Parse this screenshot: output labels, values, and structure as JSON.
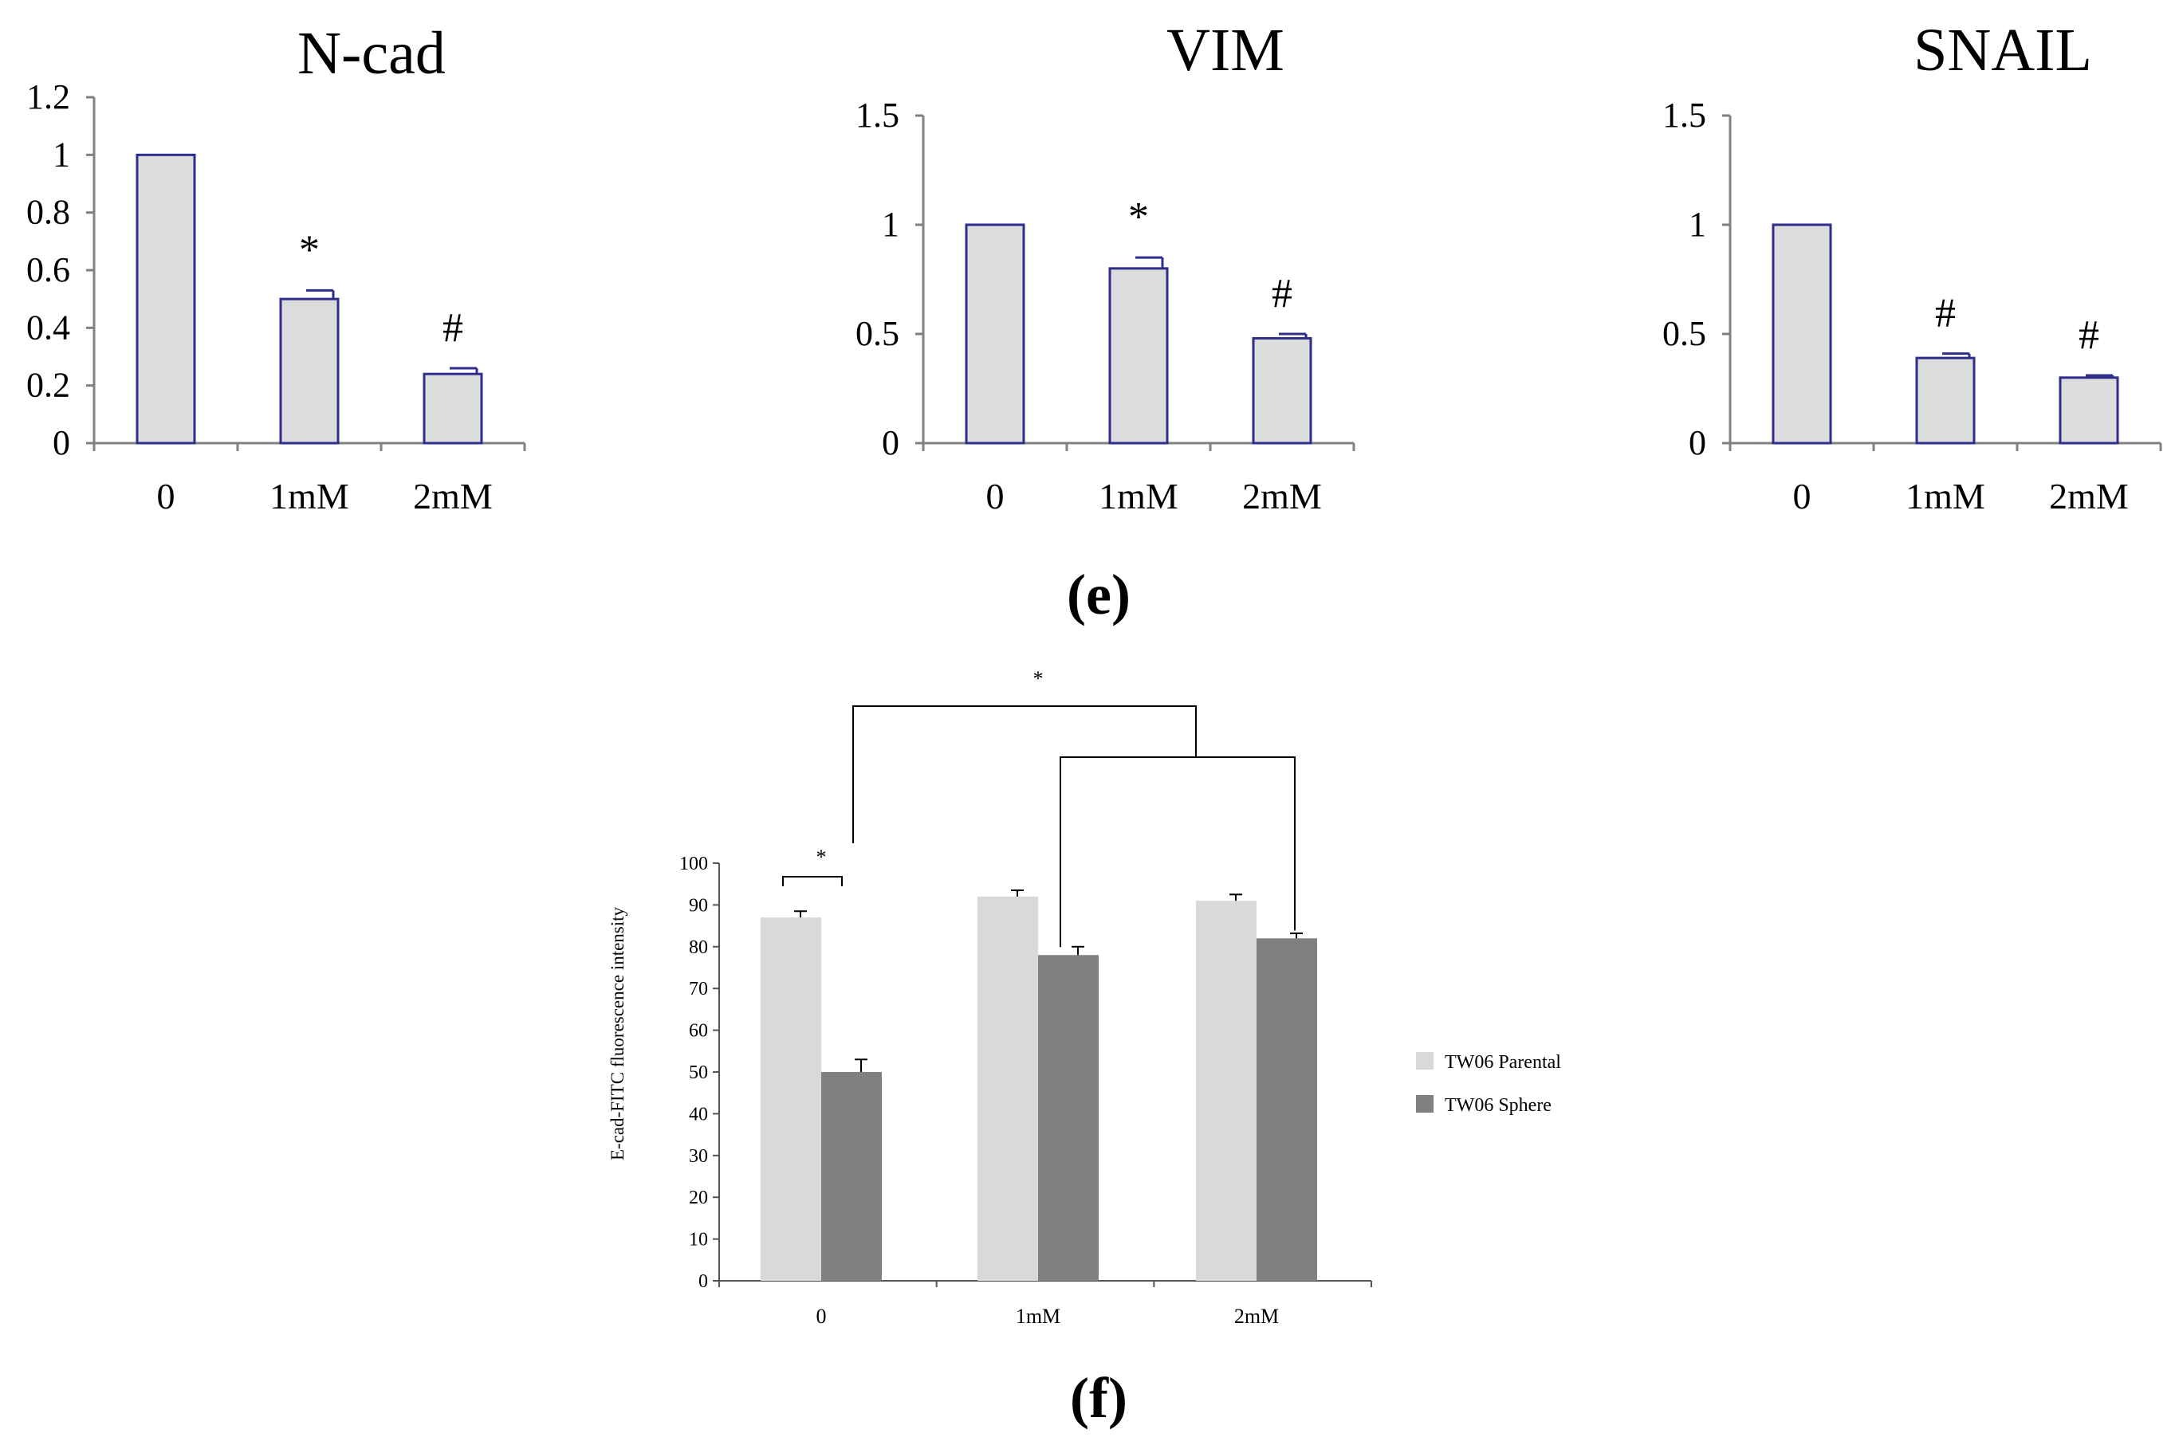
{
  "figure": {
    "panel_e_label": "(e)",
    "panel_f_label": "(f)"
  },
  "colors": {
    "bar_fill_e": "#dcdcdc",
    "bar_stroke_e": "#2e2e8a",
    "axis": "#808080",
    "parental": "#d9d9d9",
    "sphere": "#808080"
  },
  "chart_data": [
    {
      "type": "bar",
      "title": "N-cad",
      "categories": [
        "0",
        "1mM",
        "2mM"
      ],
      "values": [
        1.0,
        0.5,
        0.24
      ],
      "errors": [
        0,
        0.03,
        0.02
      ],
      "markers": [
        "",
        "*",
        "#"
      ],
      "ylim": [
        0,
        1.2
      ],
      "yticks": [
        "0",
        "0.2",
        "0.4",
        "0.6",
        "0.8",
        "1",
        "1.2"
      ],
      "ytick_values": [
        0,
        0.2,
        0.4,
        0.6,
        0.8,
        1.0,
        1.2
      ]
    },
    {
      "type": "bar",
      "title": "VIM",
      "categories": [
        "0",
        "1mM",
        "2mM"
      ],
      "values": [
        1.0,
        0.8,
        0.48
      ],
      "errors": [
        0,
        0.05,
        0.02
      ],
      "markers": [
        "",
        "*",
        "#"
      ],
      "ylim": [
        0,
        1.5
      ],
      "yticks": [
        "0",
        "0.5",
        "1",
        "1.5"
      ],
      "ytick_values": [
        0,
        0.5,
        1.0,
        1.5
      ]
    },
    {
      "type": "bar",
      "title": "SNAIL",
      "categories": [
        "0",
        "1mM",
        "2mM"
      ],
      "values": [
        1.0,
        0.39,
        0.3
      ],
      "errors": [
        0,
        0.02,
        0.01
      ],
      "markers": [
        "",
        "#",
        "#"
      ],
      "ylim": [
        0,
        1.5
      ],
      "yticks": [
        "0",
        "0.5",
        "1",
        "1.5"
      ],
      "ytick_values": [
        0,
        0.5,
        1.0,
        1.5
      ]
    },
    {
      "type": "bar",
      "ylabel": "E-cad-FITC fluorescence intensity",
      "categories": [
        "0",
        "1mM",
        "2mM"
      ],
      "ylim": [
        0,
        100
      ],
      "yticks": [
        "0",
        "10",
        "20",
        "30",
        "40",
        "50",
        "60",
        "70",
        "80",
        "90",
        "100"
      ],
      "ytick_values": [
        0,
        10,
        20,
        30,
        40,
        50,
        60,
        70,
        80,
        90,
        100
      ],
      "series": [
        {
          "name": "TW06 Parental",
          "values": [
            87,
            92,
            91
          ],
          "errors": [
            1.5,
            1.5,
            1.5
          ]
        },
        {
          "name": "TW06 Sphere",
          "values": [
            50,
            78,
            82
          ],
          "errors": [
            3,
            2,
            1.2
          ]
        }
      ],
      "significance": [
        "*",
        "*"
      ],
      "legend_position": "right"
    }
  ]
}
